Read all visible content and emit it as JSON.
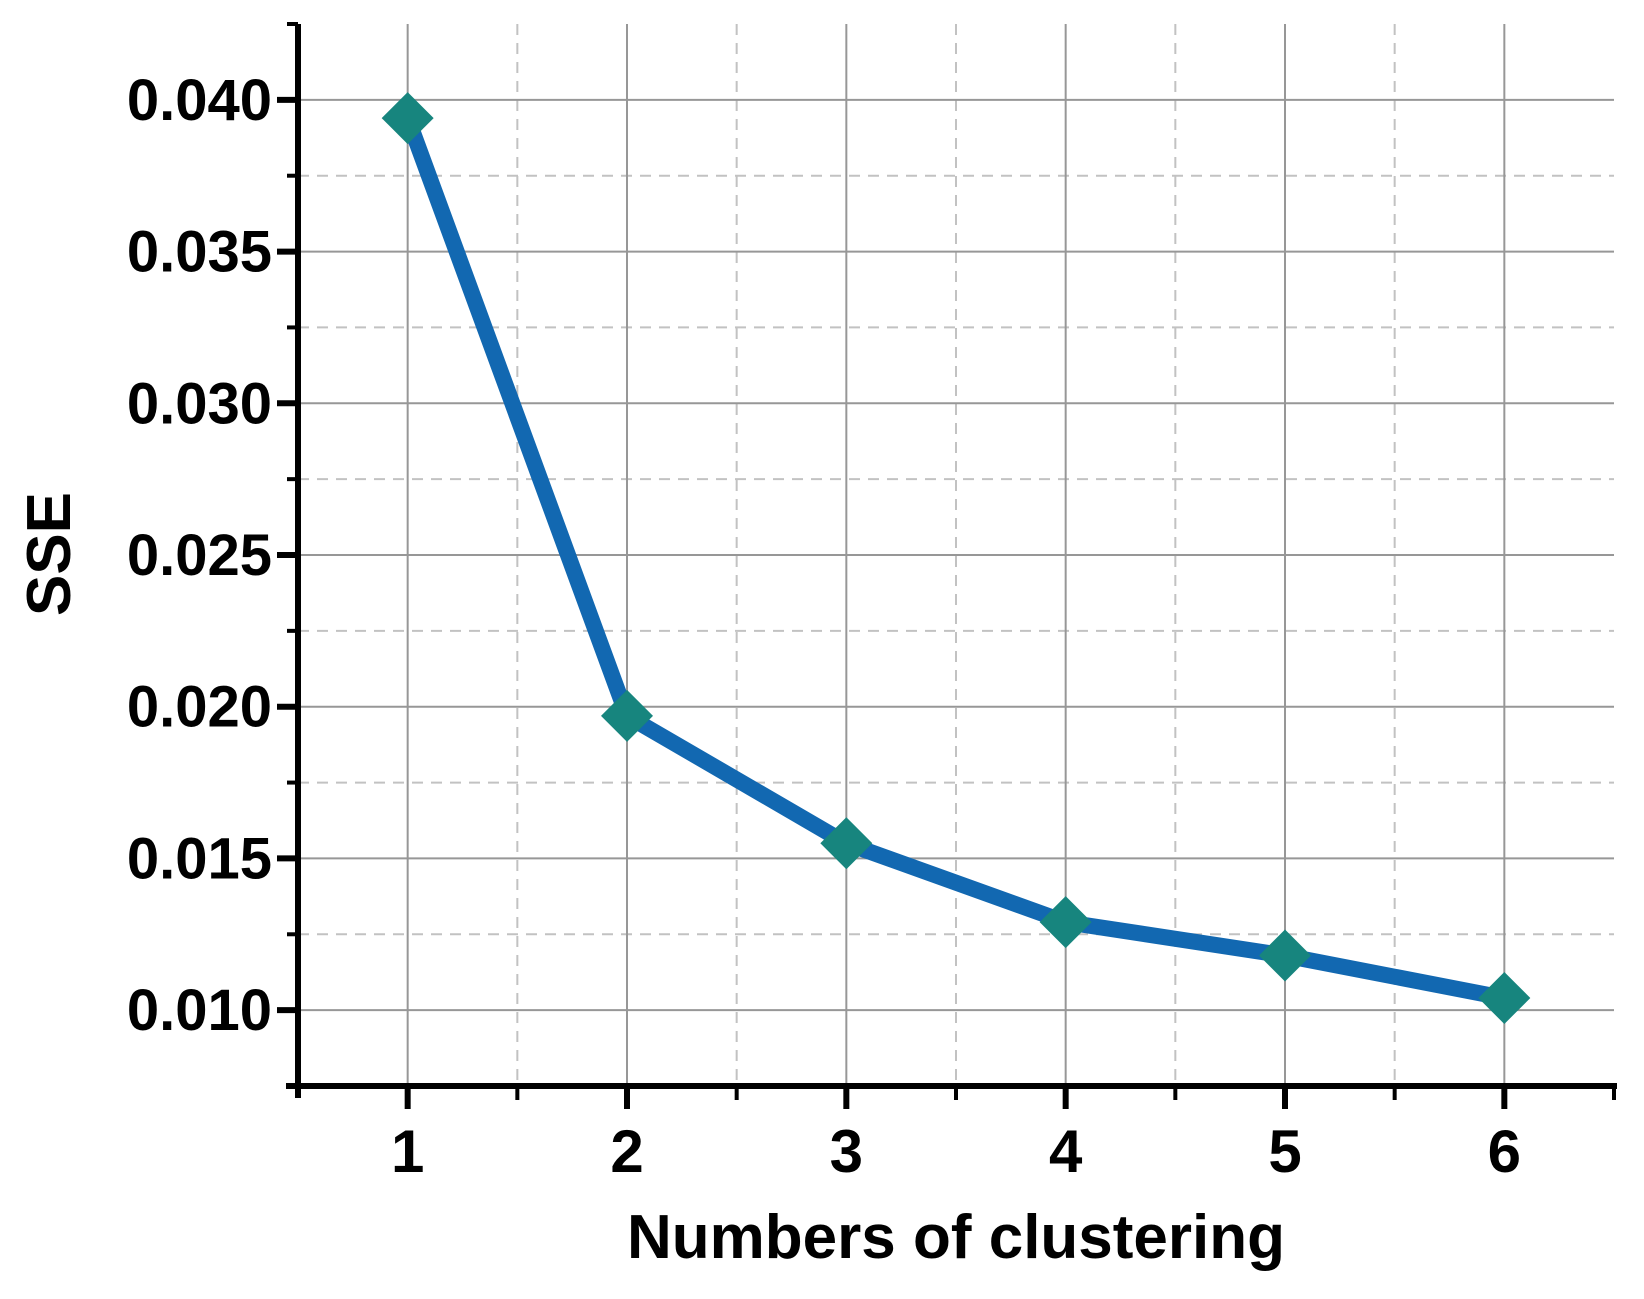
{
  "chart_data": {
    "type": "line",
    "title": "",
    "xlabel": "Numbers of clustering",
    "ylabel": "SSE",
    "x": [
      1,
      2,
      3,
      4,
      5,
      6
    ],
    "series": [
      {
        "name": "SSE",
        "values": [
          0.0394,
          0.0197,
          0.0155,
          0.0129,
          0.0118,
          0.0104
        ]
      }
    ],
    "x_tick_labels": [
      "1",
      "2",
      "3",
      "4",
      "5",
      "6"
    ],
    "x_tick_values": [
      1,
      2,
      3,
      4,
      5,
      6
    ],
    "x_minor_tick_values": [
      1.5,
      2.5,
      3.5,
      4.5,
      5.5,
      6.5
    ],
    "y_tick_labels": [
      "0.010",
      "0.015",
      "0.020",
      "0.025",
      "0.030",
      "0.035",
      "0.040"
    ],
    "y_tick_values": [
      0.01,
      0.015,
      0.02,
      0.025,
      0.03,
      0.035,
      0.04
    ],
    "y_minor_tick_values": [
      0.0125,
      0.0175,
      0.0225,
      0.0275,
      0.0325,
      0.0375,
      0.0425
    ],
    "xlim": [
      0.5,
      6.5
    ],
    "ylim": [
      0.0075,
      0.0425
    ],
    "grid": {
      "major": "solid",
      "minor": "dashed"
    },
    "legend_position": "none",
    "marker_shape": "diamond",
    "colors": {
      "line": "#1268b1",
      "marker": "#17857e",
      "grid_major": "#979797",
      "grid_minor": "#c2c2c2",
      "axis": "#000000",
      "text": "#000000",
      "background": "#ffffff"
    }
  }
}
